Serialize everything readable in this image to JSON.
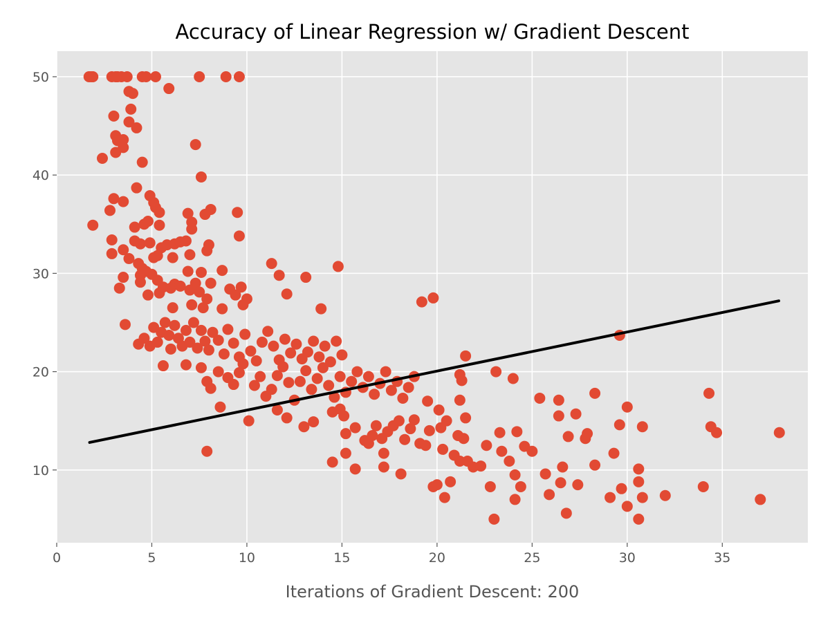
{
  "chart_data": {
    "type": "scatter",
    "title": "Accuracy of Linear Regression w/ Gradient Descent",
    "xlabel": "Iterations of Gradient Descent: 200",
    "ylabel": "",
    "xlim": [
      0,
      39.5
    ],
    "ylim": [
      2.6,
      52.6
    ],
    "xticks": [
      0,
      5,
      10,
      15,
      20,
      25,
      30,
      35
    ],
    "yticks": [
      10,
      20,
      30,
      40,
      50
    ],
    "grid": true,
    "legend": "none",
    "colors": {
      "points": "#E24A33",
      "line": "#000000",
      "plot_background": "#E5E5E5",
      "grid": "#FFFFFF"
    },
    "fit_line": {
      "x": [
        1.73,
        37.97
      ],
      "y": [
        12.8,
        27.2
      ]
    },
    "points": [
      [
        1.7,
        50
      ],
      [
        1.8,
        50
      ],
      [
        1.9,
        50
      ],
      [
        2.9,
        50
      ],
      [
        3.1,
        50
      ],
      [
        3.2,
        50
      ],
      [
        3.4,
        50
      ],
      [
        3.7,
        50
      ],
      [
        4.5,
        50
      ],
      [
        4.7,
        50
      ],
      [
        5.2,
        50
      ],
      [
        7.5,
        50
      ],
      [
        8.9,
        50
      ],
      [
        9.6,
        50
      ],
      [
        5.9,
        48.8
      ],
      [
        3.8,
        48.5
      ],
      [
        4.0,
        48.3
      ],
      [
        3.9,
        46.7
      ],
      [
        3.0,
        46.0
      ],
      [
        3.8,
        45.4
      ],
      [
        4.2,
        44.8
      ],
      [
        3.1,
        44.0
      ],
      [
        3.2,
        43.5
      ],
      [
        3.5,
        43.6
      ],
      [
        3.5,
        42.8
      ],
      [
        3.1,
        42.3
      ],
      [
        2.4,
        41.7
      ],
      [
        4.5,
        41.3
      ],
      [
        7.3,
        43.1
      ],
      [
        7.6,
        39.8
      ],
      [
        4.2,
        38.7
      ],
      [
        4.9,
        37.9
      ],
      [
        5.1,
        37.2
      ],
      [
        3.0,
        37.6
      ],
      [
        3.5,
        37.3
      ],
      [
        5.2,
        36.7
      ],
      [
        5.4,
        36.2
      ],
      [
        6.9,
        36.1
      ],
      [
        8.1,
        36.5
      ],
      [
        7.8,
        36.0
      ],
      [
        9.5,
        36.2
      ],
      [
        2.8,
        36.4
      ],
      [
        1.9,
        34.9
      ],
      [
        4.1,
        34.7
      ],
      [
        4.6,
        35.0
      ],
      [
        4.8,
        35.3
      ],
      [
        5.4,
        34.9
      ],
      [
        7.1,
        35.2
      ],
      [
        7.1,
        34.5
      ],
      [
        9.6,
        33.8
      ],
      [
        2.9,
        33.4
      ],
      [
        4.1,
        33.3
      ],
      [
        4.4,
        33.0
      ],
      [
        4.9,
        33.1
      ],
      [
        5.5,
        32.6
      ],
      [
        5.8,
        32.9
      ],
      [
        6.2,
        33.0
      ],
      [
        6.5,
        33.2
      ],
      [
        6.8,
        33.3
      ],
      [
        8.0,
        32.9
      ],
      [
        7.9,
        32.3
      ],
      [
        3.5,
        32.4
      ],
      [
        2.9,
        32.0
      ],
      [
        3.8,
        31.5
      ],
      [
        5.1,
        31.6
      ],
      [
        5.3,
        31.8
      ],
      [
        6.1,
        31.6
      ],
      [
        7.0,
        31.9
      ],
      [
        4.3,
        31.0
      ],
      [
        4.5,
        30.5
      ],
      [
        4.7,
        30.2
      ],
      [
        4.4,
        29.8
      ],
      [
        5.0,
        29.9
      ],
      [
        5.3,
        29.3
      ],
      [
        6.9,
        30.2
      ],
      [
        7.6,
        30.1
      ],
      [
        8.7,
        30.3
      ],
      [
        11.3,
        31.0
      ],
      [
        14.8,
        30.7
      ],
      [
        3.5,
        29.6
      ],
      [
        4.4,
        29.1
      ],
      [
        6.2,
        28.9
      ],
      [
        5.6,
        28.6
      ],
      [
        7.3,
        29.0
      ],
      [
        8.1,
        29.0
      ],
      [
        9.1,
        28.4
      ],
      [
        9.7,
        28.6
      ],
      [
        11.7,
        29.8
      ],
      [
        13.1,
        29.6
      ],
      [
        3.3,
        28.5
      ],
      [
        4.8,
        27.8
      ],
      [
        5.4,
        28.0
      ],
      [
        6.0,
        28.5
      ],
      [
        6.5,
        28.7
      ],
      [
        7.0,
        28.3
      ],
      [
        7.5,
        28.1
      ],
      [
        7.9,
        27.4
      ],
      [
        9.4,
        27.8
      ],
      [
        10.0,
        27.4
      ],
      [
        12.1,
        27.9
      ],
      [
        6.1,
        26.5
      ],
      [
        7.1,
        26.8
      ],
      [
        7.7,
        26.5
      ],
      [
        8.7,
        26.4
      ],
      [
        9.8,
        26.8
      ],
      [
        13.9,
        26.4
      ],
      [
        19.2,
        27.1
      ],
      [
        19.8,
        27.5
      ],
      [
        3.6,
        24.8
      ],
      [
        4.3,
        22.8
      ],
      [
        4.6,
        23.4
      ],
      [
        4.9,
        22.6
      ],
      [
        5.1,
        24.5
      ],
      [
        5.3,
        23.0
      ],
      [
        5.5,
        24.0
      ],
      [
        5.7,
        25.0
      ],
      [
        5.9,
        23.7
      ],
      [
        6.0,
        22.3
      ],
      [
        6.2,
        24.7
      ],
      [
        6.4,
        23.4
      ],
      [
        6.6,
        22.6
      ],
      [
        6.8,
        24.2
      ],
      [
        7.0,
        23.0
      ],
      [
        7.2,
        25.0
      ],
      [
        7.4,
        22.4
      ],
      [
        7.6,
        24.2
      ],
      [
        7.8,
        23.1
      ],
      [
        8.0,
        22.2
      ],
      [
        8.2,
        24.0
      ],
      [
        8.5,
        23.2
      ],
      [
        8.8,
        21.8
      ],
      [
        9.0,
        24.3
      ],
      [
        9.3,
        22.9
      ],
      [
        9.6,
        21.5
      ],
      [
        9.9,
        23.8
      ],
      [
        10.2,
        22.1
      ],
      [
        10.5,
        21.1
      ],
      [
        10.8,
        23.0
      ],
      [
        11.1,
        24.1
      ],
      [
        11.4,
        22.6
      ],
      [
        11.7,
        21.2
      ],
      [
        12.0,
        23.3
      ],
      [
        12.3,
        21.9
      ],
      [
        12.6,
        22.8
      ],
      [
        12.9,
        21.3
      ],
      [
        13.2,
        22.0
      ],
      [
        13.5,
        23.1
      ],
      [
        13.8,
        21.5
      ],
      [
        14.1,
        22.6
      ],
      [
        14.4,
        21.0
      ],
      [
        14.7,
        23.1
      ],
      [
        15.0,
        21.7
      ],
      [
        5.6,
        20.6
      ],
      [
        6.8,
        20.7
      ],
      [
        7.6,
        20.4
      ],
      [
        7.9,
        19.0
      ],
      [
        8.1,
        18.3
      ],
      [
        8.5,
        20.0
      ],
      [
        9.0,
        19.4
      ],
      [
        9.3,
        18.7
      ],
      [
        9.6,
        19.9
      ],
      [
        9.8,
        20.8
      ],
      [
        10.4,
        18.6
      ],
      [
        10.7,
        19.5
      ],
      [
        11.0,
        17.5
      ],
      [
        11.3,
        18.2
      ],
      [
        11.6,
        19.6
      ],
      [
        11.9,
        20.5
      ],
      [
        12.2,
        18.9
      ],
      [
        12.5,
        17.1
      ],
      [
        12.8,
        19.0
      ],
      [
        13.1,
        20.1
      ],
      [
        13.4,
        18.2
      ],
      [
        13.7,
        19.3
      ],
      [
        14.0,
        20.4
      ],
      [
        14.3,
        18.6
      ],
      [
        14.6,
        17.4
      ],
      [
        14.9,
        19.5
      ],
      [
        15.2,
        17.9
      ],
      [
        15.5,
        19.0
      ],
      [
        15.8,
        20.0
      ],
      [
        16.1,
        18.4
      ],
      [
        16.4,
        19.5
      ],
      [
        16.7,
        17.7
      ],
      [
        17.0,
        18.8
      ],
      [
        17.3,
        20.0
      ],
      [
        17.6,
        18.1
      ],
      [
        17.9,
        19.0
      ],
      [
        18.2,
        17.3
      ],
      [
        18.5,
        18.4
      ],
      [
        18.8,
        19.5
      ],
      [
        7.9,
        11.9
      ],
      [
        8.6,
        16.4
      ],
      [
        10.1,
        15.0
      ],
      [
        11.6,
        16.1
      ],
      [
        12.1,
        15.3
      ],
      [
        13.0,
        14.4
      ],
      [
        13.5,
        14.9
      ],
      [
        14.5,
        15.9
      ],
      [
        14.9,
        16.2
      ],
      [
        15.1,
        15.5
      ],
      [
        15.2,
        13.7
      ],
      [
        15.2,
        11.7
      ],
      [
        15.7,
        10.1
      ],
      [
        15.7,
        14.3
      ],
      [
        16.2,
        13.0
      ],
      [
        16.4,
        12.7
      ],
      [
        16.6,
        13.5
      ],
      [
        16.8,
        14.5
      ],
      [
        17.1,
        13.2
      ],
      [
        17.2,
        11.7
      ],
      [
        17.2,
        10.3
      ],
      [
        17.4,
        13.9
      ],
      [
        17.7,
        14.5
      ],
      [
        18.0,
        15.0
      ],
      [
        18.1,
        9.6
      ],
      [
        18.3,
        13.1
      ],
      [
        18.6,
        14.2
      ],
      [
        18.8,
        15.1
      ],
      [
        19.1,
        12.7
      ],
      [
        19.4,
        12.5
      ],
      [
        19.6,
        14.0
      ],
      [
        19.8,
        8.3
      ],
      [
        20.0,
        8.5
      ],
      [
        20.2,
        14.3
      ],
      [
        20.3,
        12.1
      ],
      [
        20.4,
        7.2
      ],
      [
        20.5,
        15.0
      ],
      [
        20.7,
        8.8
      ],
      [
        20.9,
        11.5
      ],
      [
        21.1,
        13.5
      ],
      [
        21.2,
        10.9
      ],
      [
        21.4,
        13.2
      ],
      [
        21.5,
        15.3
      ],
      [
        21.6,
        10.9
      ],
      [
        14.5,
        10.8
      ],
      [
        19.5,
        17.0
      ],
      [
        20.1,
        16.1
      ],
      [
        21.2,
        19.7
      ],
      [
        21.3,
        19.1
      ],
      [
        21.2,
        17.1
      ],
      [
        21.5,
        21.6
      ],
      [
        21.9,
        10.3
      ],
      [
        22.3,
        10.4
      ],
      [
        22.6,
        12.5
      ],
      [
        22.8,
        8.3
      ],
      [
        23.0,
        5.0
      ],
      [
        23.1,
        20.0
      ],
      [
        23.3,
        13.8
      ],
      [
        23.4,
        11.9
      ],
      [
        23.8,
        10.9
      ],
      [
        24.0,
        19.3
      ],
      [
        24.1,
        7.0
      ],
      [
        24.1,
        9.5
      ],
      [
        24.2,
        13.9
      ],
      [
        24.4,
        8.3
      ],
      [
        24.6,
        12.4
      ],
      [
        25.0,
        11.9
      ],
      [
        25.4,
        17.3
      ],
      [
        25.7,
        9.6
      ],
      [
        25.9,
        7.5
      ],
      [
        26.4,
        17.1
      ],
      [
        26.4,
        15.5
      ],
      [
        26.5,
        8.7
      ],
      [
        26.6,
        10.3
      ],
      [
        26.8,
        5.6
      ],
      [
        26.9,
        13.4
      ],
      [
        27.3,
        15.7
      ],
      [
        27.4,
        8.5
      ],
      [
        27.8,
        13.2
      ],
      [
        27.9,
        13.7
      ],
      [
        28.3,
        17.8
      ],
      [
        28.3,
        10.5
      ],
      [
        29.1,
        7.2
      ],
      [
        29.3,
        11.7
      ],
      [
        29.6,
        14.6
      ],
      [
        29.6,
        23.7
      ],
      [
        29.7,
        8.1
      ],
      [
        30.0,
        6.3
      ],
      [
        30.0,
        16.4
      ],
      [
        30.6,
        5.0
      ],
      [
        30.6,
        10.1
      ],
      [
        30.6,
        8.8
      ],
      [
        30.8,
        7.2
      ],
      [
        30.8,
        14.4
      ],
      [
        32.0,
        7.4
      ],
      [
        34.0,
        8.3
      ],
      [
        34.3,
        17.8
      ],
      [
        34.4,
        14.4
      ],
      [
        34.7,
        13.8
      ],
      [
        37.0,
        7.0
      ],
      [
        38.0,
        13.8
      ]
    ]
  }
}
